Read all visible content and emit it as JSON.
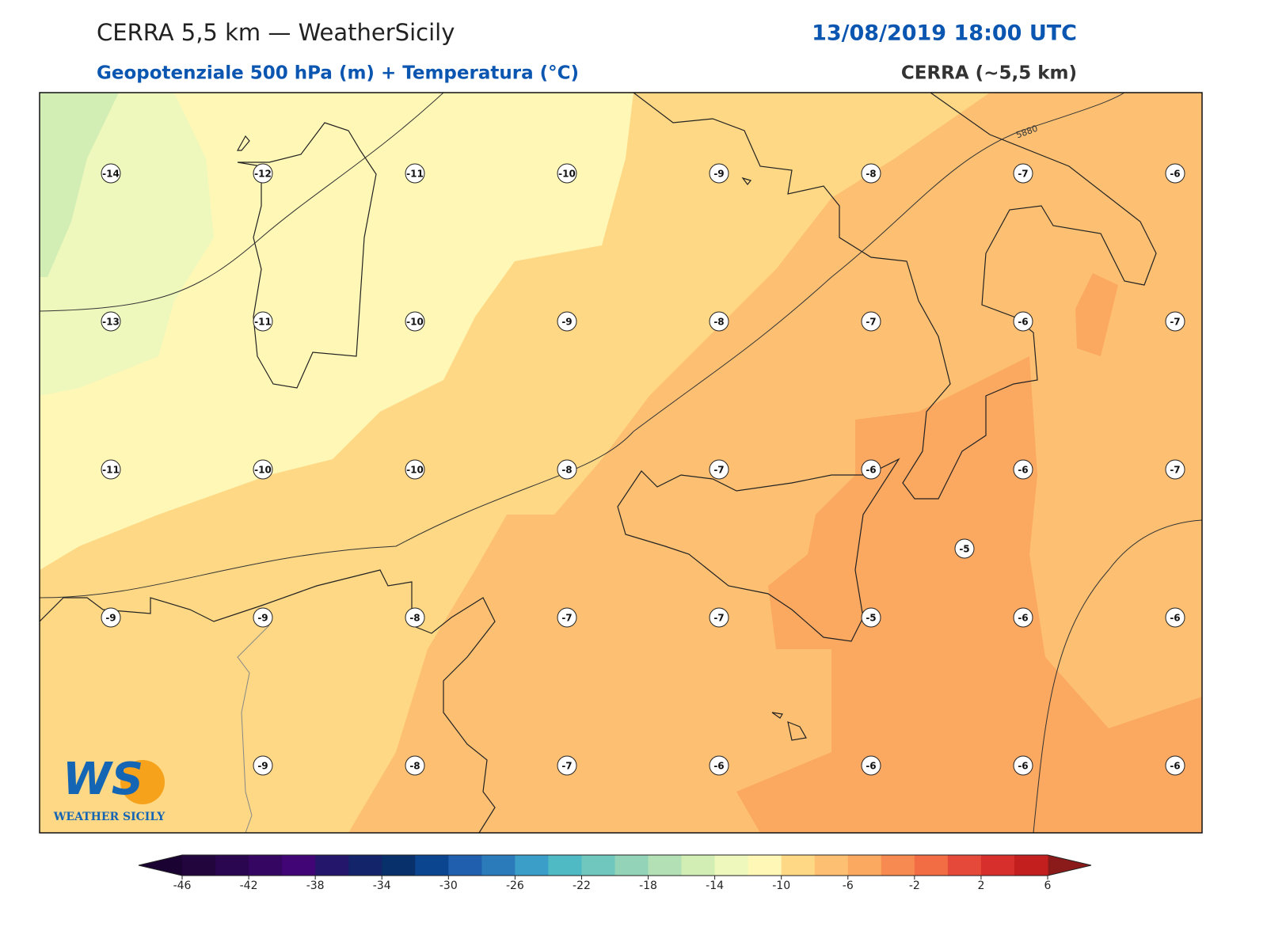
{
  "header": {
    "title": "CERRA 5,5 km — WeatherSicily",
    "datetime": "13/08/2019 18:00 UTC",
    "subtitle": "Geopotenziale 500 hPa (m) + Temperatura (°C)",
    "model": "CERRA (~5,5 km)"
  },
  "map": {
    "station_rows": [
      [
        -14,
        -12,
        -11,
        -10,
        -9,
        -8,
        -7,
        -6
      ],
      [
        -13,
        -11,
        -10,
        -9,
        -8,
        -7,
        -6,
        -7
      ],
      [
        -11,
        -10,
        -10,
        -8,
        -7,
        -6,
        -6,
        -7
      ],
      [
        -9,
        -9,
        -8,
        -7,
        -7,
        -5,
        -6,
        -6
      ],
      [
        null,
        -9,
        -8,
        -7,
        -6,
        -6,
        -6,
        -6
      ]
    ],
    "extra_station": -5,
    "contour_label": "5880"
  },
  "logo": {
    "mark": "WS",
    "text": "WEATHER SICILY"
  },
  "colorbar": {
    "range": [
      -46,
      6
    ],
    "ticks": [
      -46,
      -42,
      -38,
      -34,
      -30,
      -26,
      -22,
      -18,
      -14,
      -10,
      -6,
      -2,
      2,
      6
    ],
    "colors": [
      "#23053d",
      "#2a0550",
      "#360663",
      "#420575",
      "#24166a",
      "#14246a",
      "#08306b",
      "#0b4590",
      "#1f5fae",
      "#2b7bbb",
      "#3a9ec8",
      "#4fb9c4",
      "#6fc7bd",
      "#93d3b8",
      "#b3e0b4",
      "#d3eeb4",
      "#eef7bc",
      "#fff7b6",
      "#fed884",
      "#fdc072",
      "#fba860",
      "#f68a50",
      "#f26c44",
      "#e5493a",
      "#d7302c",
      "#c41f1f"
    ],
    "under_color": "#1a0333",
    "over_color": "#8b1a1a"
  }
}
